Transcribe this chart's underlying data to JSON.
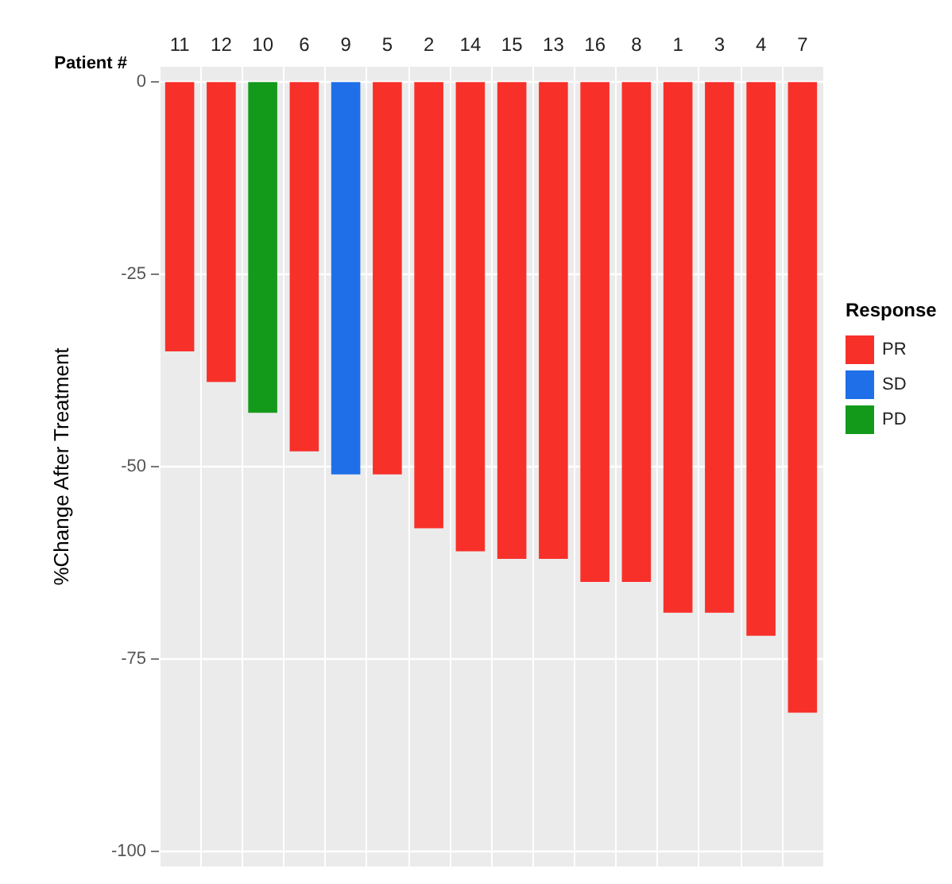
{
  "chart_data": {
    "type": "bar",
    "xlabel": "Patient #",
    "ylabel": "%Change After Treatment",
    "legend_title": "Response",
    "categories": [
      "11",
      "12",
      "10",
      "6",
      "9",
      "5",
      "2",
      "14",
      "15",
      "13",
      "16",
      "8",
      "1",
      "3",
      "4",
      "7"
    ],
    "series": [
      {
        "name": "PR",
        "color": "#f8302a",
        "values": [
          -35,
          -39,
          null,
          -48,
          null,
          -51,
          -58,
          -61,
          -62,
          -62,
          -65,
          -65,
          -69,
          -69,
          -72,
          -82
        ]
      },
      {
        "name": "SD",
        "color": "#1f6fe8",
        "values": [
          null,
          null,
          null,
          null,
          -51,
          null,
          null,
          null,
          null,
          null,
          null,
          null,
          null,
          null,
          null,
          null
        ]
      },
      {
        "name": "PD",
        "color": "#139a1b",
        "values": [
          null,
          null,
          -43,
          null,
          null,
          null,
          null,
          null,
          null,
          null,
          null,
          null,
          null,
          null,
          null,
          null
        ]
      }
    ],
    "stacked": true,
    "ylim": [
      -102,
      2
    ],
    "yticks": [
      0,
      -25,
      -50,
      -75,
      -100
    ],
    "grid": true,
    "legend": "right"
  }
}
